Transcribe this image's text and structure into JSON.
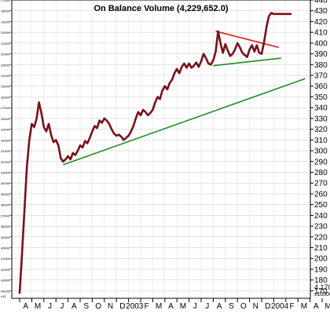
{
  "chart_data": {
    "type": "line",
    "title": "On Balance Volume (4,229,652.0)",
    "xlabel": "",
    "ylabel": "",
    "grid": true,
    "legend": "none",
    "ylim": [
      163,
      440
    ],
    "y_ticks": [
      170,
      180,
      190,
      200,
      210,
      220,
      230,
      240,
      250,
      260,
      270,
      280,
      290,
      300,
      310,
      320,
      330,
      340,
      350,
      360,
      370,
      380,
      390,
      400,
      410,
      420,
      430,
      440
    ],
    "y_left_labels": [
      "44000",
      "43000",
      "42000",
      "41000",
      "40000",
      "39000",
      "38000",
      "37000",
      "36000",
      "35000",
      "34000",
      "33000",
      "32000",
      "31000",
      "30000",
      "29000",
      "28000",
      "27000",
      "26000",
      "25000",
      "24000",
      "23000",
      "22000",
      "21000",
      "20000",
      "19000",
      "18000",
      "17000"
    ],
    "y_left_unit": "x10",
    "y_right_unit": "x10000",
    "y_right_cut_labels": [
      "4.170"
    ],
    "x_months": [
      "A",
      "M",
      "J",
      "J",
      "A",
      "S",
      "O",
      "N",
      "D",
      "2003",
      "F",
      "M",
      "A",
      "M",
      "J",
      "J",
      "A",
      "S",
      "O",
      "N",
      "D",
      "2004",
      "F",
      "M",
      "A",
      "M"
    ],
    "series": [
      {
        "color": "#7a1018",
        "x": [
          0,
          0.15,
          0.3,
          0.45,
          0.6,
          0.8,
          1.0,
          1.2,
          1.4,
          1.6,
          1.8,
          2.0,
          2.2,
          2.4,
          2.6,
          2.8,
          3.0,
          3.2,
          3.4,
          3.6,
          3.8,
          4.0,
          4.2,
          4.4,
          4.6,
          4.8,
          5.0,
          5.2,
          5.4,
          5.6,
          5.8,
          6.0,
          6.2,
          6.4,
          6.6,
          6.8,
          7.0,
          7.2,
          7.4,
          7.6,
          7.8,
          8.0,
          8.2,
          8.4,
          8.6,
          8.8,
          9.0,
          9.2,
          9.4,
          9.6,
          9.8,
          10.0,
          10.2,
          10.4,
          10.6,
          10.8,
          11.0,
          11.2,
          11.4,
          11.6,
          11.8,
          12.0,
          12.2,
          12.4,
          12.6,
          12.8,
          13.0,
          13.2,
          13.4,
          13.6,
          13.8,
          14.0,
          14.2,
          14.4,
          14.6,
          14.8,
          15.0,
          15.2,
          15.4,
          15.6,
          15.8,
          16.0,
          16.2,
          16.4,
          16.6,
          16.8,
          17.0,
          17.2,
          17.4,
          17.6,
          17.8,
          18.0,
          18.2,
          18.4,
          18.6,
          18.8,
          19.0,
          19.2,
          19.4,
          19.6,
          19.8,
          20.0,
          20.2,
          20.4,
          20.6,
          20.8,
          21.0,
          21.2,
          21.4,
          21.6,
          21.8,
          22.0,
          22.2,
          22.4
        ],
        "values": [
          168,
          195,
          225,
          255,
          285,
          310,
          325,
          322,
          330,
          345,
          335,
          322,
          318,
          325,
          315,
          308,
          310,
          305,
          293,
          290,
          292,
          295,
          292,
          298,
          296,
          300,
          305,
          303,
          309,
          307,
          312,
          318,
          323,
          321,
          328,
          326,
          330,
          328,
          325,
          320,
          316,
          314,
          315,
          313,
          310,
          312,
          314,
          318,
          323,
          330,
          336,
          333,
          338,
          336,
          333,
          335,
          338,
          345,
          350,
          348,
          356,
          360,
          357,
          363,
          366,
          372,
          376,
          372,
          378,
          381,
          377,
          381,
          377,
          379,
          382,
          378,
          383,
          390,
          386,
          381,
          380,
          384,
          392,
          411,
          400,
          391,
          399,
          393,
          388,
          390,
          394,
          400,
          396,
          391,
          389,
          387,
          394,
          398,
          392,
          398,
          391,
          390,
          401,
          415,
          425,
          428,
          427,
          427,
          427,
          427,
          427,
          427,
          427,
          427
        ]
      }
    ],
    "trendlines": [
      {
        "color": "#1c8c1c",
        "x": [
          3.6,
          23.6
        ],
        "y": [
          287,
          367
        ]
      },
      {
        "color": "#1c8c1c",
        "x": [
          16.0,
          21.6
        ],
        "y": [
          379,
          386
        ]
      },
      {
        "color": "#e01010",
        "x": [
          16.2,
          21.4
        ],
        "y": [
          411,
          396
        ]
      }
    ]
  }
}
